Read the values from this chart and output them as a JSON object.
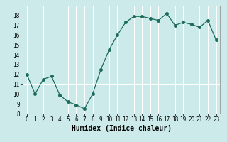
{
  "x": [
    0,
    1,
    2,
    3,
    4,
    5,
    6,
    7,
    8,
    9,
    10,
    11,
    12,
    13,
    14,
    15,
    16,
    17,
    18,
    19,
    20,
    21,
    22,
    23
  ],
  "y": [
    12.0,
    10.0,
    11.5,
    11.8,
    9.9,
    9.2,
    8.9,
    8.5,
    10.0,
    12.5,
    14.5,
    16.0,
    17.3,
    17.9,
    17.9,
    17.7,
    17.5,
    18.2,
    17.0,
    17.3,
    17.1,
    16.8,
    17.5,
    15.5
  ],
  "xlabel": "Humidex (Indice chaleur)",
  "ylim": [
    8,
    19
  ],
  "xlim": [
    -0.5,
    23.5
  ],
  "yticks": [
    8,
    9,
    10,
    11,
    12,
    13,
    14,
    15,
    16,
    17,
    18
  ],
  "xtick_labels": [
    "0",
    "1",
    "2",
    "3",
    "4",
    "5",
    "6",
    "7",
    "8",
    "9",
    "10",
    "11",
    "12",
    "13",
    "14",
    "15",
    "16",
    "17",
    "18",
    "19",
    "20",
    "21",
    "22",
    "23"
  ],
  "line_color": "#1a6b5a",
  "marker": "o",
  "marker_size": 2.5,
  "bg_color": "#cceaea",
  "grid_color": "#ffffff",
  "fig_bg": "#cceaea",
  "xlabel_fontsize": 7,
  "tick_fontsize": 5.5
}
